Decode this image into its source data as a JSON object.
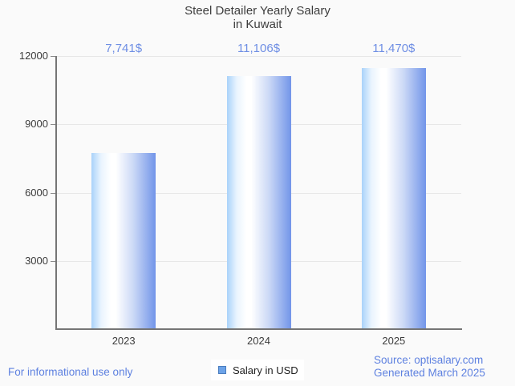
{
  "title": {
    "line1": "Steel Detailer Yearly Salary",
    "line2": "in Kuwait"
  },
  "chart_data": {
    "type": "bar",
    "title": "Steel Detailer Yearly Salary in Kuwait",
    "categories": [
      "2023",
      "2024",
      "2025"
    ],
    "series": [
      {
        "name": "Salary in USD",
        "values": [
          7741,
          11106,
          11470
        ]
      }
    ],
    "value_labels": [
      "7,741$",
      "11,106$",
      "11,470$"
    ],
    "xlabel": "",
    "ylabel": "",
    "ylim": [
      0,
      12000
    ],
    "y_ticks": [
      {
        "value": 3000,
        "label": "3000"
      },
      {
        "value": 6000,
        "label": "6000"
      },
      {
        "value": 9000,
        "label": "9000"
      },
      {
        "value": 12000,
        "label": "12000"
      }
    ],
    "grid": true,
    "legend_position": "bottom-center",
    "bar_gradient": [
      "#a9d2fa",
      "#ffffff",
      "#7295e9"
    ]
  },
  "legend": {
    "label": "Salary in USD"
  },
  "footer": {
    "disclaimer": "For informational use only",
    "source_line1": "Source: optisalary.com",
    "source_line2": "Generated March 2025"
  },
  "colors": {
    "background": "#fafafa",
    "title_text": "#3d3d3d",
    "axis_line": "#757575",
    "tick_mark": "#8a8a8a",
    "gridline": "#e7e7e7",
    "tick_text": "#3c3c3c",
    "value_label_text": "#6e8ee4",
    "footer_text": "#5e81e0",
    "legend_bg": "#ffffff",
    "legend_swatch_fill": "#6da3e8",
    "legend_swatch_border": "#4a7dbf",
    "legend_text": "#1f1f1f"
  }
}
